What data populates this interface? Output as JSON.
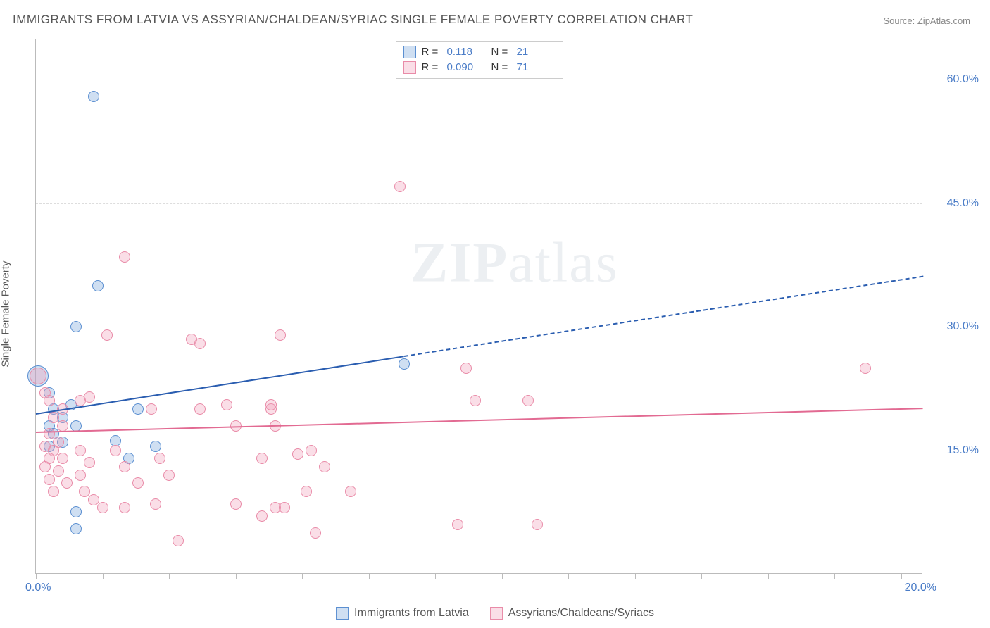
{
  "title": "IMMIGRANTS FROM LATVIA VS ASSYRIAN/CHALDEAN/SYRIAC SINGLE FEMALE POVERTY CORRELATION CHART",
  "source": "Source: ZipAtlas.com",
  "watermark": {
    "bold": "ZIP",
    "rest": "atlas"
  },
  "y_axis_label": "Single Female Poverty",
  "chart": {
    "type": "scatter",
    "background_color": "#ffffff",
    "grid_color": "#dddddd",
    "axis_color": "#bbbbbb",
    "xlim": [
      0,
      20
    ],
    "ylim": [
      0,
      65
    ],
    "x_ticks_major": [
      0,
      20
    ],
    "x_ticks_minor": [
      0,
      1.5,
      3,
      4.5,
      6,
      7.5,
      9,
      10.5,
      12,
      13.5,
      15,
      16.5,
      18,
      19.5
    ],
    "y_ticks": [
      15,
      30,
      45,
      60
    ],
    "x_tick_labels": {
      "0": "0.0%",
      "20": "20.0%"
    },
    "y_tick_labels": {
      "15": "15.0%",
      "30": "30.0%",
      "45": "45.0%",
      "60": "60.0%"
    },
    "title_fontsize": 17,
    "label_fontsize": 15,
    "tick_fontsize": 16,
    "tick_color": "#4a7cc7"
  },
  "series": [
    {
      "name": "Immigrants from Latvia",
      "legend_label": "Immigrants from Latvia",
      "R": "0.118",
      "N": "21",
      "fill_color": "rgba(118,162,217,0.35)",
      "stroke_color": "#5b8fd1",
      "marker_size": 16,
      "trend": {
        "x1": 0,
        "y1": 19.5,
        "x2": 8.3,
        "y2": 26.5,
        "color": "#2a5db0",
        "width": 2
      },
      "trend_dash": {
        "x1": 8.3,
        "y1": 26.5,
        "x2": 20,
        "y2": 36.2,
        "color": "#2a5db0",
        "width": 2
      },
      "points": [
        {
          "x": 0.05,
          "y": 24,
          "size": 30
        },
        {
          "x": 1.3,
          "y": 58
        },
        {
          "x": 1.4,
          "y": 35
        },
        {
          "x": 0.9,
          "y": 30
        },
        {
          "x": 0.3,
          "y": 22
        },
        {
          "x": 0.4,
          "y": 20
        },
        {
          "x": 0.6,
          "y": 19
        },
        {
          "x": 0.3,
          "y": 18
        },
        {
          "x": 0.9,
          "y": 18
        },
        {
          "x": 0.8,
          "y": 20.5
        },
        {
          "x": 2.3,
          "y": 20
        },
        {
          "x": 1.8,
          "y": 16.2
        },
        {
          "x": 2.7,
          "y": 15.5
        },
        {
          "x": 0.4,
          "y": 17
        },
        {
          "x": 0.6,
          "y": 16
        },
        {
          "x": 0.3,
          "y": 15.5
        },
        {
          "x": 2.1,
          "y": 14
        },
        {
          "x": 0.9,
          "y": 7.5
        },
        {
          "x": 0.9,
          "y": 5.5
        },
        {
          "x": 8.3,
          "y": 25.5
        }
      ]
    },
    {
      "name": "Assyrians/Chaldeans/Syriacs",
      "legend_label": "Assyrians/Chaldeans/Syriacs",
      "R": "0.090",
      "N": "71",
      "fill_color": "rgba(242,160,185,0.35)",
      "stroke_color": "#e98ba8",
      "marker_size": 16,
      "trend": {
        "x1": 0,
        "y1": 17.3,
        "x2": 20,
        "y2": 20.2,
        "color": "#e26a92",
        "width": 2
      },
      "points": [
        {
          "x": 0.05,
          "y": 24,
          "size": 24
        },
        {
          "x": 0.2,
          "y": 22
        },
        {
          "x": 0.3,
          "y": 21
        },
        {
          "x": 1.0,
          "y": 21
        },
        {
          "x": 1.2,
          "y": 21.5
        },
        {
          "x": 0.6,
          "y": 20
        },
        {
          "x": 0.4,
          "y": 19
        },
        {
          "x": 0.6,
          "y": 18
        },
        {
          "x": 0.3,
          "y": 17
        },
        {
          "x": 0.5,
          "y": 16
        },
        {
          "x": 0.2,
          "y": 15.5
        },
        {
          "x": 0.4,
          "y": 15
        },
        {
          "x": 0.3,
          "y": 14
        },
        {
          "x": 0.6,
          "y": 14
        },
        {
          "x": 0.2,
          "y": 13
        },
        {
          "x": 0.5,
          "y": 12.5
        },
        {
          "x": 0.3,
          "y": 11.5
        },
        {
          "x": 0.7,
          "y": 11
        },
        {
          "x": 0.4,
          "y": 10
        },
        {
          "x": 1.0,
          "y": 15
        },
        {
          "x": 1.2,
          "y": 13.5
        },
        {
          "x": 1.0,
          "y": 12
        },
        {
          "x": 1.1,
          "y": 10
        },
        {
          "x": 1.3,
          "y": 9
        },
        {
          "x": 1.5,
          "y": 8
        },
        {
          "x": 1.8,
          "y": 15
        },
        {
          "x": 2.0,
          "y": 13
        },
        {
          "x": 2.0,
          "y": 8
        },
        {
          "x": 2.0,
          "y": 38.5
        },
        {
          "x": 1.6,
          "y": 29
        },
        {
          "x": 2.3,
          "y": 11
        },
        {
          "x": 2.8,
          "y": 14
        },
        {
          "x": 2.7,
          "y": 8.5
        },
        {
          "x": 3.0,
          "y": 12
        },
        {
          "x": 2.6,
          "y": 20
        },
        {
          "x": 3.2,
          "y": 4
        },
        {
          "x": 3.5,
          "y": 28.5
        },
        {
          "x": 3.7,
          "y": 28
        },
        {
          "x": 3.7,
          "y": 20
        },
        {
          "x": 4.3,
          "y": 20.5
        },
        {
          "x": 4.5,
          "y": 18
        },
        {
          "x": 4.5,
          "y": 8.5
        },
        {
          "x": 5.5,
          "y": 29
        },
        {
          "x": 5.1,
          "y": 14
        },
        {
          "x": 5.3,
          "y": 20
        },
        {
          "x": 5.3,
          "y": 20.5
        },
        {
          "x": 5.4,
          "y": 18
        },
        {
          "x": 5.4,
          "y": 8
        },
        {
          "x": 5.6,
          "y": 8
        },
        {
          "x": 5.1,
          "y": 7
        },
        {
          "x": 5.9,
          "y": 14.5
        },
        {
          "x": 6.1,
          "y": 10
        },
        {
          "x": 6.3,
          "y": 5
        },
        {
          "x": 6.2,
          "y": 15
        },
        {
          "x": 6.5,
          "y": 13
        },
        {
          "x": 7.1,
          "y": 10
        },
        {
          "x": 8.2,
          "y": 47
        },
        {
          "x": 9.7,
          "y": 25
        },
        {
          "x": 9.9,
          "y": 21
        },
        {
          "x": 9.5,
          "y": 6
        },
        {
          "x": 11.1,
          "y": 21
        },
        {
          "x": 11.3,
          "y": 6
        },
        {
          "x": 18.7,
          "y": 25
        }
      ]
    }
  ],
  "legend_top": {
    "R_label": "R =",
    "N_label": "N ="
  }
}
